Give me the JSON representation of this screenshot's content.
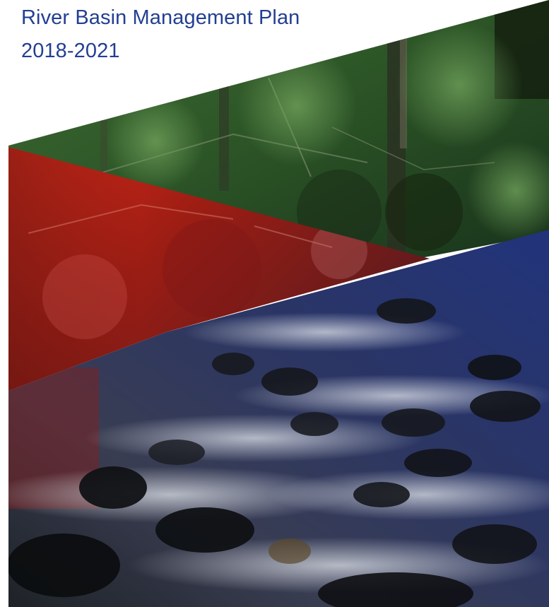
{
  "document": {
    "title_line_1": "River Basin Management Plan",
    "title_line_2": "2018-2021"
  },
  "cover_art": {
    "top_band": "forest-photo",
    "left_band": "red-tinted-forest-photo",
    "bottom_band": "blue-tinted-river-photo"
  },
  "colors": {
    "title_text": "#233f92",
    "red_tint": "#d8281c",
    "blue_tint": "#22357f",
    "forest_green": "#2f5a2c"
  }
}
